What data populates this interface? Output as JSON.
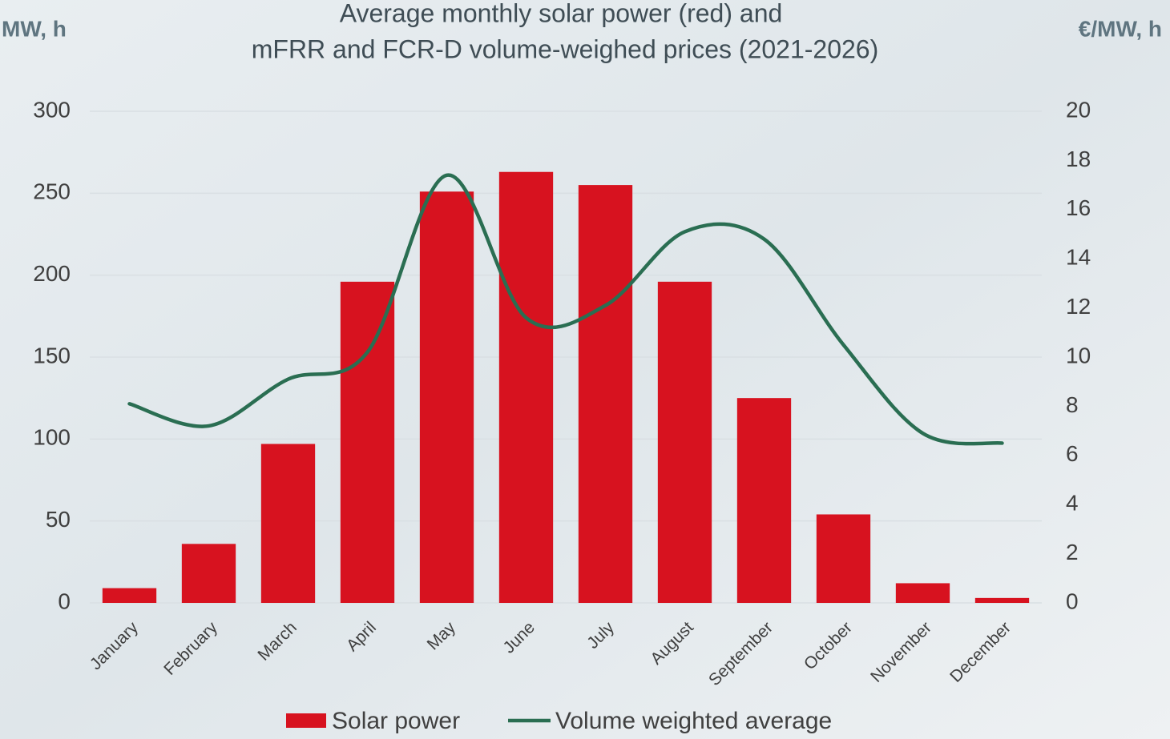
{
  "chart_data": {
    "type": "combo",
    "title": [
      "Average monthly solar power (red) and",
      "mFRR and FCR-D volume-weighed prices (2021-2026)"
    ],
    "y_label": "MW, h",
    "y2_label": "€/MW, h",
    "categories": [
      "January",
      "February",
      "March",
      "April",
      "May",
      "June",
      "July",
      "August",
      "September",
      "October",
      "November",
      "December"
    ],
    "series": [
      {
        "name": "Solar power",
        "type": "bar",
        "color": "#d7121f",
        "values": [
          9,
          36,
          97,
          196,
          251,
          263,
          255,
          196,
          125,
          54,
          12,
          3
        ]
      },
      {
        "name": "Volume weighted average",
        "type": "line",
        "axis": "y2",
        "color": "#2a6e52",
        "values": [
          8.1,
          7.2,
          9.1,
          10.2,
          17.4,
          11.6,
          12.1,
          15.1,
          14.8,
          10.5,
          6.9,
          6.5
        ]
      }
    ],
    "ylim": [
      0,
      300
    ],
    "yticks": [
      0,
      50,
      100,
      150,
      200,
      250,
      300
    ],
    "y2lim": [
      0,
      20
    ],
    "y2ticks": [
      0,
      2,
      4,
      6,
      8,
      10,
      12,
      14,
      16,
      18,
      20
    ],
    "grid": true,
    "legend": "bottom"
  }
}
